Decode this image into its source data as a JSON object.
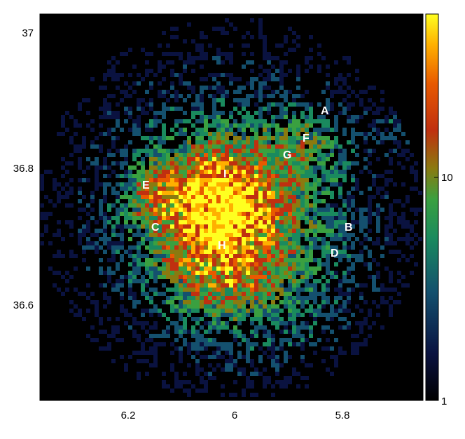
{
  "image": {
    "description_type": "astronomical count map",
    "colormap": [
      "#000000",
      "#0a1240",
      "#14506e",
      "#1a8a5e",
      "#3aa040",
      "#8a7a10",
      "#c03010",
      "#e85a00",
      "#ffb000",
      "#ffff20"
    ]
  },
  "axes": {
    "x_ticks": [
      {
        "value": 6.2,
        "label": "6.2"
      },
      {
        "value": 6.0,
        "label": "6"
      },
      {
        "value": 5.8,
        "label": "5.8"
      }
    ],
    "y_ticks": [
      {
        "value": 37.0,
        "label": "37"
      },
      {
        "value": 36.8,
        "label": "36.8"
      },
      {
        "value": 36.6,
        "label": "36.6"
      }
    ]
  },
  "colorbar": {
    "scale": "log",
    "range": [
      1,
      30
    ],
    "labels": [
      {
        "value": 10,
        "label": "10"
      },
      {
        "value": 1,
        "label": "1"
      }
    ]
  },
  "regions": [
    {
      "label": "A"
    },
    {
      "label": "B"
    },
    {
      "label": "C"
    },
    {
      "label": "D"
    },
    {
      "label": "E"
    },
    {
      "label": "F"
    },
    {
      "label": "G"
    },
    {
      "label": "H"
    },
    {
      "label": "I"
    }
  ]
}
